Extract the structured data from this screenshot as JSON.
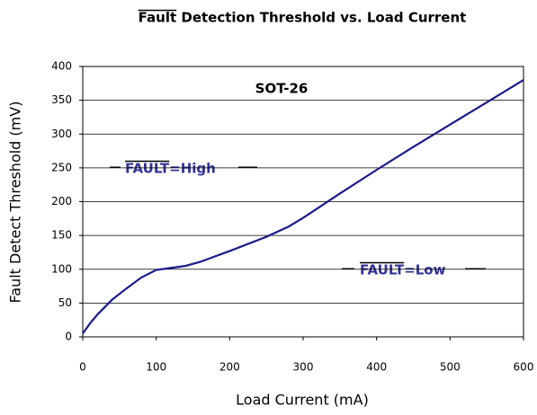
{
  "chart_data": {
    "type": "line",
    "title": "Fault Detection Threshold vs. Load Current",
    "x_label": "Load Current (mA)",
    "y_label": "Fault Detect Threshold (mV)",
    "annotations": [
      "SOT-26",
      "FAULT=High",
      "FAULT=Low"
    ],
    "x": [
      0,
      10,
      20,
      40,
      60,
      80,
      100,
      120,
      140,
      160,
      200,
      250,
      280,
      300,
      350,
      400,
      450,
      500,
      550,
      600
    ],
    "series": [
      {
        "color": "#1a1a8c",
        "values": [
          5,
          20,
          33,
          55,
          72,
          88,
          99,
          102,
          105,
          111,
          127,
          148,
          163,
          176,
          212,
          247,
          281,
          314,
          347,
          380
        ]
      }
    ],
    "xlim": [
      0,
      600
    ],
    "xticks": [
      0,
      100,
      200,
      300,
      400,
      500,
      600
    ],
    "ylim": [
      0,
      400
    ],
    "yticks": [
      0,
      50,
      100,
      150,
      200,
      250,
      300,
      350,
      400
    ],
    "grid": true
  }
}
